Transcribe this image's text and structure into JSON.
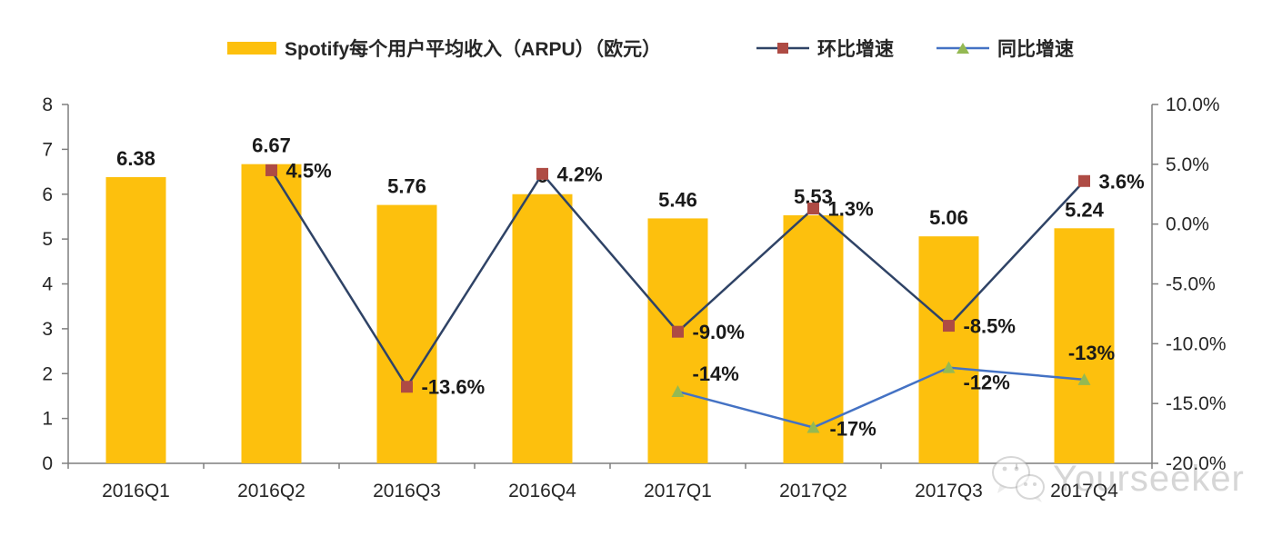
{
  "legend": {
    "arpu_label": "Spotify每个用户平均收入（ARPU）（欧元）",
    "qoq_label": "环比增速",
    "yoy_label": "同比增速"
  },
  "watermark": "Yourseeker",
  "colors": {
    "bar": "#FDC00D",
    "qoq_line": "#2F4366",
    "qoq_marker": "#AE4B44",
    "yoy_line": "#4472C4",
    "yoy_marker": "#94B953",
    "axis": "#7F7F7F",
    "text": "#262626",
    "label": "#1A1A1A"
  },
  "chart_data": {
    "type": "bar+line",
    "title": "Spotify每个用户平均收入（ARPU）（欧元）",
    "categories": [
      "2016Q1",
      "2016Q2",
      "2016Q3",
      "2016Q4",
      "2017Q1",
      "2017Q2",
      "2017Q3",
      "2017Q4"
    ],
    "series": [
      {
        "key": "arpu",
        "name": "Spotify每个用户平均收入（ARPU）（欧元）",
        "type": "bar",
        "axis": "left",
        "color": "#FDC00D",
        "values": [
          6.38,
          6.67,
          5.76,
          6,
          5.46,
          5.53,
          5.06,
          5.24
        ],
        "labels": [
          "6.38",
          "6.67",
          "5.76",
          "6",
          "5.46",
          "5.53",
          "5.06",
          "5.24"
        ]
      },
      {
        "key": "qoq",
        "name": "环比增速",
        "type": "line",
        "axis": "right",
        "line_color": "#2F4366",
        "marker": "square",
        "marker_color": "#AE4B44",
        "values": [
          null,
          4.5,
          -13.6,
          4.2,
          -9.0,
          1.3,
          -8.5,
          3.6
        ],
        "labels": [
          null,
          "4.5%",
          "-13.6%",
          "4.2%",
          "-9.0%",
          "1.3%",
          "-8.5%",
          "3.6%"
        ]
      },
      {
        "key": "yoy",
        "name": "同比增速",
        "type": "line",
        "axis": "right",
        "line_color": "#4472C4",
        "marker": "triangle",
        "marker_color": "#94B953",
        "values": [
          null,
          null,
          null,
          null,
          -14,
          -17,
          -12,
          -13
        ],
        "labels": [
          null,
          null,
          null,
          null,
          "-14%",
          "-17%",
          "-12%",
          "-13%"
        ]
      }
    ],
    "left_axis": {
      "min": 0,
      "max": 8,
      "ticks": [
        "0",
        "1",
        "2",
        "3",
        "4",
        "5",
        "6",
        "7",
        "8"
      ]
    },
    "right_axis": {
      "min": -20,
      "max": 10,
      "tick_values": [
        10,
        5,
        0,
        -5,
        -10,
        -15,
        -20
      ],
      "ticks": [
        "10.0%",
        "5.0%",
        "0.0%",
        "-5.0%",
        "-10.0%",
        "-15.0%",
        "-20.0%"
      ]
    },
    "grid": false,
    "legend_position": "top"
  }
}
